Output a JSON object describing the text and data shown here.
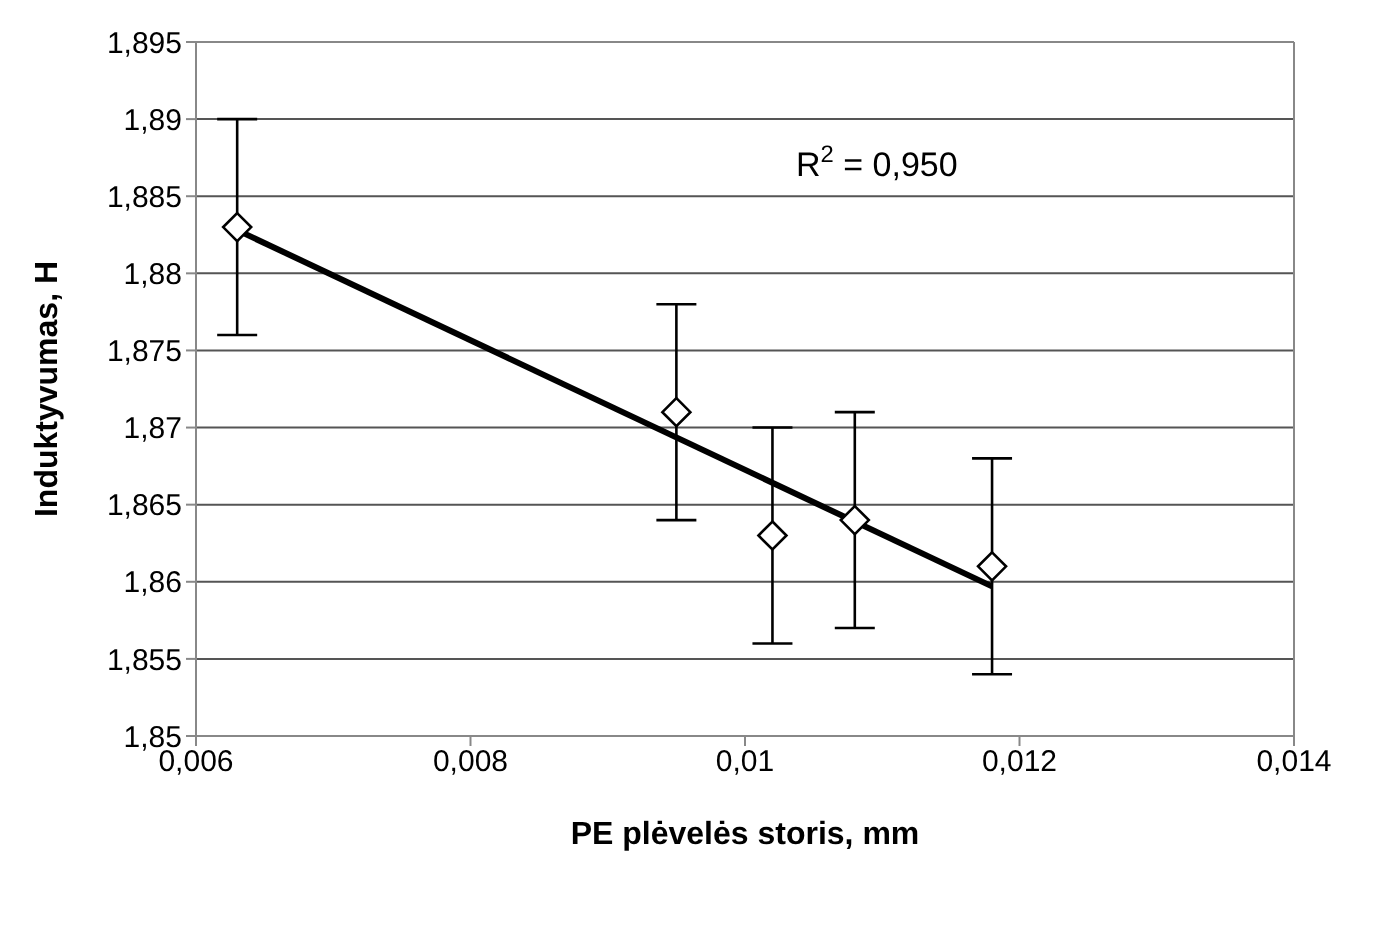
{
  "chart_data": {
    "type": "scatter",
    "xlabel": "PE plėvelės storis, mm",
    "ylabel": "Induktyvumas, H",
    "annotations": [
      "R$^{2}$ = 0,950"
    ],
    "series": [
      {
        "color": "#000000",
        "x": [
          0.0063,
          0.0095,
          0.0102,
          0.0108,
          0.0118
        ],
        "values": [
          1.883,
          1.871,
          1.863,
          1.864,
          1.861
        ],
        "errors": [
          0.007,
          0.007,
          0.007,
          0.007,
          0.007
        ],
        "marker": "diamond"
      },
      {
        "type": "line",
        "color": "#000000",
        "x": [
          0.0063,
          0.0118
        ],
        "values": [
          1.8828,
          1.8597
        ],
        "marker": "none"
      }
    ],
    "xlim": [
      0.006,
      0.014
    ],
    "xticks": [
      {
        "value": 0.006,
        "label": "0,006"
      },
      {
        "value": 0.008,
        "label": "0,008"
      },
      {
        "value": 0.01,
        "label": "0,01"
      },
      {
        "value": 0.012,
        "label": "0,012"
      },
      {
        "value": 0.014,
        "label": "0,014"
      }
    ],
    "ylim": [
      1.85,
      1.895
    ],
    "yticks": [
      {
        "value": 1.85,
        "label": "1,85"
      },
      {
        "value": 1.855,
        "label": "1,855"
      },
      {
        "value": 1.86,
        "label": "1,86"
      },
      {
        "value": 1.865,
        "label": "1,865"
      },
      {
        "value": 1.87,
        "label": "1,87"
      },
      {
        "value": 1.875,
        "label": "1,875"
      },
      {
        "value": 1.88,
        "label": "1,88"
      },
      {
        "value": 1.885,
        "label": "1,885"
      },
      {
        "value": 1.89,
        "label": "1,89"
      },
      {
        "value": 1.895,
        "label": "1,895"
      }
    ],
    "grid": "y",
    "legend": false
  }
}
